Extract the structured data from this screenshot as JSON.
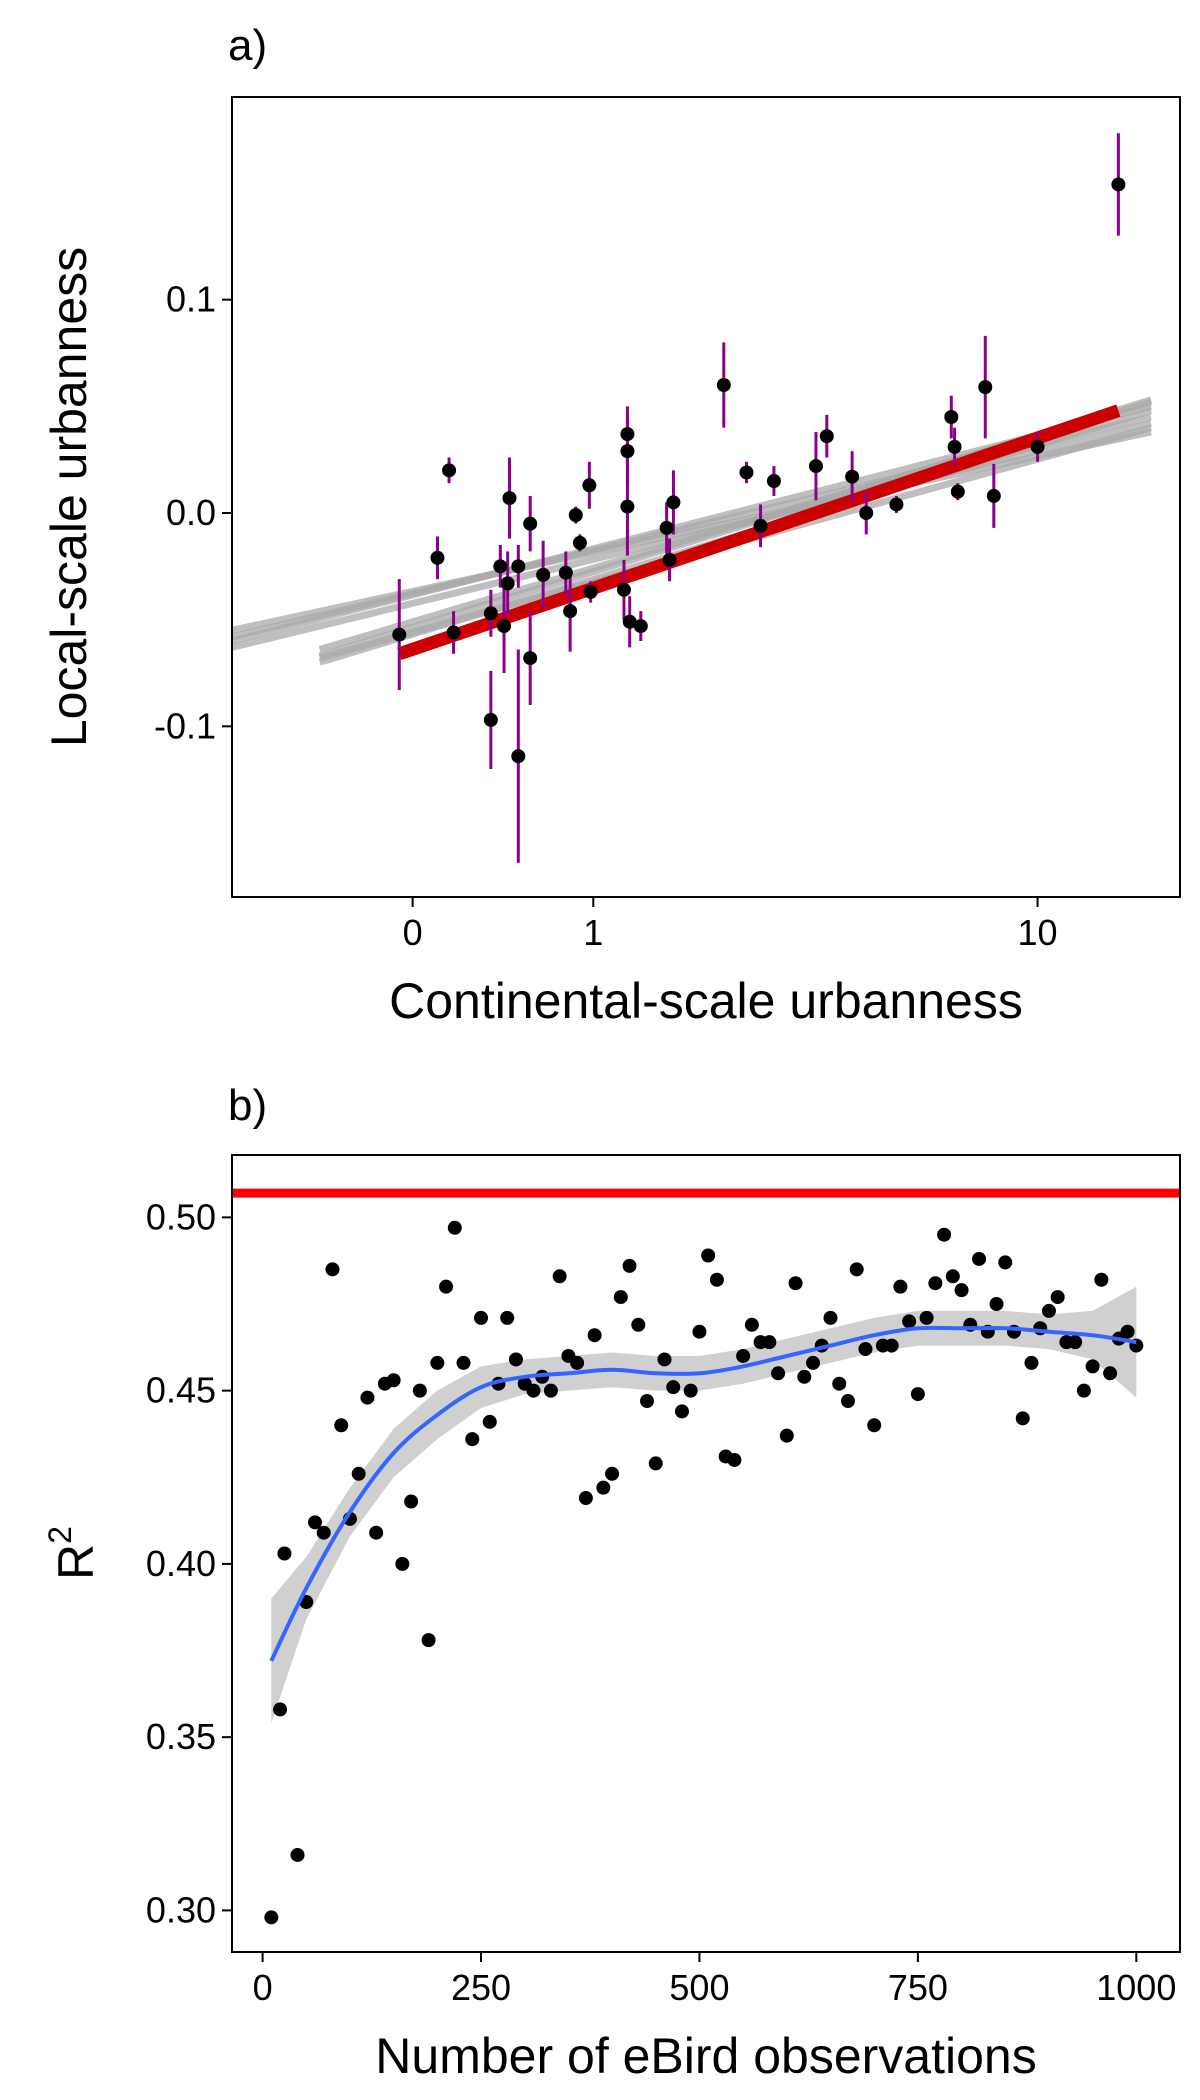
{
  "chart_data": [
    {
      "type": "scatter",
      "panel_label": "a)",
      "xlabel": "Continental-scale urbanness",
      "ylabel": "Local-scale urbanness",
      "x_scale": "log1p",
      "x_ticks": [
        {
          "value": 0,
          "label": "0"
        },
        {
          "value": 1,
          "label": "1"
        },
        {
          "value": 10,
          "label": "10"
        }
      ],
      "y_ticks": [
        {
          "value": -0.1,
          "label": "-0.1"
        },
        {
          "value": 0.0,
          "label": "0.0"
        },
        {
          "value": 0.1,
          "label": "0.1"
        }
      ],
      "xlim": [
        -0.5,
        18
      ],
      "ylim": [
        -0.18,
        0.195
      ],
      "grid": false,
      "colors": {
        "points": "#000000",
        "error_bars": "#8B008B",
        "fit_line": "#CC0000",
        "posterior_lines": "#A9A9A9"
      },
      "points": [
        {
          "x": -0.05,
          "y": -0.057,
          "lo": -0.083,
          "hi": -0.031
        },
        {
          "x": 0.1,
          "y": -0.021,
          "lo": -0.031,
          "hi": -0.011
        },
        {
          "x": 0.15,
          "y": 0.02,
          "lo": 0.014,
          "hi": 0.026
        },
        {
          "x": 0.17,
          "y": -0.056,
          "lo": -0.066,
          "hi": -0.046
        },
        {
          "x": 0.35,
          "y": -0.047,
          "lo": -0.058,
          "hi": -0.036
        },
        {
          "x": 0.35,
          "y": -0.097,
          "lo": -0.12,
          "hi": -0.074
        },
        {
          "x": 0.4,
          "y": -0.025,
          "lo": -0.035,
          "hi": -0.015
        },
        {
          "x": 0.42,
          "y": -0.053,
          "lo": -0.075,
          "hi": -0.031
        },
        {
          "x": 0.44,
          "y": -0.033,
          "lo": -0.048,
          "hi": -0.018
        },
        {
          "x": 0.45,
          "y": 0.007,
          "lo": -0.012,
          "hi": 0.026
        },
        {
          "x": 0.5,
          "y": -0.114,
          "lo": -0.164,
          "hi": -0.064
        },
        {
          "x": 0.5,
          "y": -0.025,
          "lo": -0.035,
          "hi": -0.015
        },
        {
          "x": 0.57,
          "y": -0.005,
          "lo": -0.018,
          "hi": 0.008
        },
        {
          "x": 0.57,
          "y": -0.068,
          "lo": -0.09,
          "hi": -0.046
        },
        {
          "x": 0.65,
          "y": -0.029,
          "lo": -0.045,
          "hi": -0.013
        },
        {
          "x": 0.8,
          "y": -0.028,
          "lo": -0.038,
          "hi": -0.018
        },
        {
          "x": 0.83,
          "y": -0.046,
          "lo": -0.065,
          "hi": -0.027
        },
        {
          "x": 0.87,
          "y": -0.001,
          "lo": -0.005,
          "hi": 0.003
        },
        {
          "x": 0.9,
          "y": -0.014,
          "lo": -0.018,
          "hi": -0.01
        },
        {
          "x": 0.97,
          "y": 0.013,
          "lo": 0.002,
          "hi": 0.024
        },
        {
          "x": 0.98,
          "y": -0.037,
          "lo": -0.042,
          "hi": -0.032
        },
        {
          "x": 1.25,
          "y": -0.036,
          "lo": -0.05,
          "hi": -0.022
        },
        {
          "x": 1.28,
          "y": 0.037,
          "lo": 0.024,
          "hi": 0.05
        },
        {
          "x": 1.28,
          "y": 0.029,
          "lo": 0.013,
          "hi": 0.045
        },
        {
          "x": 1.28,
          "y": 0.003,
          "lo": -0.02,
          "hi": 0.026
        },
        {
          "x": 1.3,
          "y": -0.051,
          "lo": -0.063,
          "hi": -0.039
        },
        {
          "x": 1.4,
          "y": -0.053,
          "lo": -0.06,
          "hi": -0.046
        },
        {
          "x": 1.65,
          "y": -0.007,
          "lo": -0.019,
          "hi": 0.005
        },
        {
          "x": 1.68,
          "y": -0.022,
          "lo": -0.032,
          "hi": -0.012
        },
        {
          "x": 1.72,
          "y": 0.005,
          "lo": -0.01,
          "hi": 0.02
        },
        {
          "x": 2.3,
          "y": 0.06,
          "lo": 0.04,
          "hi": 0.08
        },
        {
          "x": 2.6,
          "y": 0.019,
          "lo": 0.014,
          "hi": 0.024
        },
        {
          "x": 2.8,
          "y": -0.006,
          "lo": -0.016,
          "hi": 0.004
        },
        {
          "x": 3.0,
          "y": 0.015,
          "lo": 0.008,
          "hi": 0.022
        },
        {
          "x": 3.7,
          "y": 0.022,
          "lo": 0.006,
          "hi": 0.038
        },
        {
          "x": 3.9,
          "y": 0.036,
          "lo": 0.026,
          "hi": 0.046
        },
        {
          "x": 4.4,
          "y": 0.017,
          "lo": 0.005,
          "hi": 0.029
        },
        {
          "x": 4.7,
          "y": 0.0,
          "lo": -0.01,
          "hi": 0.01
        },
        {
          "x": 5.4,
          "y": 0.004,
          "lo": 0.0,
          "hi": 0.008
        },
        {
          "x": 6.9,
          "y": 0.045,
          "lo": 0.035,
          "hi": 0.055
        },
        {
          "x": 7.0,
          "y": 0.031,
          "lo": 0.022,
          "hi": 0.04
        },
        {
          "x": 7.1,
          "y": 0.01,
          "lo": 0.006,
          "hi": 0.014
        },
        {
          "x": 8.0,
          "y": 0.059,
          "lo": 0.035,
          "hi": 0.083
        },
        {
          "x": 8.3,
          "y": 0.008,
          "lo": -0.007,
          "hi": 0.023
        },
        {
          "x": 10.0,
          "y": 0.031,
          "lo": 0.024,
          "hi": 0.038
        },
        {
          "x": 14.0,
          "y": 0.154,
          "lo": 0.13,
          "hi": 0.178
        }
      ],
      "fit_line": {
        "x": [
          -0.05,
          14.0
        ],
        "y": [
          -0.066,
          0.048
        ]
      },
      "posterior_lines": [
        {
          "x": [
            -0.5,
            16.0
          ],
          "y": [
            -0.055,
            0.038
          ]
        },
        {
          "x": [
            -0.5,
            16.0
          ],
          "y": [
            -0.058,
            0.045
          ]
        },
        {
          "x": [
            -0.5,
            16.0
          ],
          "y": [
            -0.06,
            0.05
          ]
        },
        {
          "x": [
            -0.5,
            16.0
          ],
          "y": [
            -0.063,
            0.042
          ]
        },
        {
          "x": [
            -0.3,
            16.0
          ],
          "y": [
            -0.067,
            0.053
          ]
        },
        {
          "x": [
            -0.3,
            16.0
          ],
          "y": [
            -0.07,
            0.048
          ]
        },
        {
          "x": [
            -0.3,
            16.0
          ],
          "y": [
            -0.068,
            0.04
          ]
        },
        {
          "x": [
            -0.3,
            16.0
          ],
          "y": [
            -0.064,
            0.052
          ]
        }
      ]
    },
    {
      "type": "scatter",
      "panel_label": "b)",
      "xlabel": "Number of eBird observations",
      "ylabel": "R",
      "ylabel_superscript": "2",
      "x_ticks": [
        {
          "value": 0,
          "label": "0"
        },
        {
          "value": 250,
          "label": "250"
        },
        {
          "value": 500,
          "label": "500"
        },
        {
          "value": 750,
          "label": "750"
        },
        {
          "value": 1000,
          "label": "1000"
        }
      ],
      "y_ticks": [
        {
          "value": 0.3,
          "label": "0.30"
        },
        {
          "value": 0.35,
          "label": "0.35"
        },
        {
          "value": 0.4,
          "label": "0.40"
        },
        {
          "value": 0.45,
          "label": "0.45"
        },
        {
          "value": 0.5,
          "label": "0.50"
        }
      ],
      "xlim": [
        -35,
        1050
      ],
      "ylim": [
        0.288,
        0.518
      ],
      "grid": false,
      "colors": {
        "points": "#000000",
        "smooth": "#3366FF",
        "band": "#C8C8C8",
        "hline": "#FF0000"
      },
      "hline": 0.507,
      "points": [
        {
          "x": 10,
          "y": 0.298
        },
        {
          "x": 20,
          "y": 0.358
        },
        {
          "x": 25,
          "y": 0.403
        },
        {
          "x": 40,
          "y": 0.316
        },
        {
          "x": 50,
          "y": 0.389
        },
        {
          "x": 60,
          "y": 0.412
        },
        {
          "x": 70,
          "y": 0.409
        },
        {
          "x": 80,
          "y": 0.485
        },
        {
          "x": 90,
          "y": 0.44
        },
        {
          "x": 100,
          "y": 0.413
        },
        {
          "x": 110,
          "y": 0.426
        },
        {
          "x": 120,
          "y": 0.448
        },
        {
          "x": 130,
          "y": 0.409
        },
        {
          "x": 140,
          "y": 0.452
        },
        {
          "x": 150,
          "y": 0.453
        },
        {
          "x": 160,
          "y": 0.4
        },
        {
          "x": 170,
          "y": 0.418
        },
        {
          "x": 180,
          "y": 0.45
        },
        {
          "x": 190,
          "y": 0.378
        },
        {
          "x": 200,
          "y": 0.458
        },
        {
          "x": 210,
          "y": 0.48
        },
        {
          "x": 220,
          "y": 0.497
        },
        {
          "x": 230,
          "y": 0.458
        },
        {
          "x": 240,
          "y": 0.436
        },
        {
          "x": 250,
          "y": 0.471
        },
        {
          "x": 260,
          "y": 0.441
        },
        {
          "x": 270,
          "y": 0.452
        },
        {
          "x": 280,
          "y": 0.471
        },
        {
          "x": 290,
          "y": 0.459
        },
        {
          "x": 300,
          "y": 0.452
        },
        {
          "x": 310,
          "y": 0.45
        },
        {
          "x": 320,
          "y": 0.454
        },
        {
          "x": 330,
          "y": 0.45
        },
        {
          "x": 340,
          "y": 0.483
        },
        {
          "x": 350,
          "y": 0.46
        },
        {
          "x": 360,
          "y": 0.458
        },
        {
          "x": 370,
          "y": 0.419
        },
        {
          "x": 380,
          "y": 0.466
        },
        {
          "x": 390,
          "y": 0.422
        },
        {
          "x": 400,
          "y": 0.426
        },
        {
          "x": 410,
          "y": 0.477
        },
        {
          "x": 420,
          "y": 0.486
        },
        {
          "x": 430,
          "y": 0.469
        },
        {
          "x": 440,
          "y": 0.447
        },
        {
          "x": 450,
          "y": 0.429
        },
        {
          "x": 460,
          "y": 0.459
        },
        {
          "x": 470,
          "y": 0.451
        },
        {
          "x": 480,
          "y": 0.444
        },
        {
          "x": 490,
          "y": 0.45
        },
        {
          "x": 500,
          "y": 0.467
        },
        {
          "x": 510,
          "y": 0.489
        },
        {
          "x": 520,
          "y": 0.482
        },
        {
          "x": 530,
          "y": 0.431
        },
        {
          "x": 540,
          "y": 0.43
        },
        {
          "x": 550,
          "y": 0.46
        },
        {
          "x": 560,
          "y": 0.469
        },
        {
          "x": 570,
          "y": 0.464
        },
        {
          "x": 580,
          "y": 0.464
        },
        {
          "x": 590,
          "y": 0.455
        },
        {
          "x": 600,
          "y": 0.437
        },
        {
          "x": 610,
          "y": 0.481
        },
        {
          "x": 620,
          "y": 0.454
        },
        {
          "x": 630,
          "y": 0.458
        },
        {
          "x": 640,
          "y": 0.463
        },
        {
          "x": 650,
          "y": 0.471
        },
        {
          "x": 660,
          "y": 0.452
        },
        {
          "x": 670,
          "y": 0.447
        },
        {
          "x": 680,
          "y": 0.485
        },
        {
          "x": 690,
          "y": 0.462
        },
        {
          "x": 700,
          "y": 0.44
        },
        {
          "x": 710,
          "y": 0.463
        },
        {
          "x": 720,
          "y": 0.463
        },
        {
          "x": 730,
          "y": 0.48
        },
        {
          "x": 740,
          "y": 0.47
        },
        {
          "x": 750,
          "y": 0.449
        },
        {
          "x": 760,
          "y": 0.471
        },
        {
          "x": 770,
          "y": 0.481
        },
        {
          "x": 780,
          "y": 0.495
        },
        {
          "x": 790,
          "y": 0.483
        },
        {
          "x": 800,
          "y": 0.479
        },
        {
          "x": 810,
          "y": 0.469
        },
        {
          "x": 820,
          "y": 0.488
        },
        {
          "x": 830,
          "y": 0.467
        },
        {
          "x": 840,
          "y": 0.475
        },
        {
          "x": 850,
          "y": 0.487
        },
        {
          "x": 860,
          "y": 0.467
        },
        {
          "x": 870,
          "y": 0.442
        },
        {
          "x": 880,
          "y": 0.458
        },
        {
          "x": 890,
          "y": 0.468
        },
        {
          "x": 900,
          "y": 0.473
        },
        {
          "x": 910,
          "y": 0.477
        },
        {
          "x": 920,
          "y": 0.464
        },
        {
          "x": 930,
          "y": 0.464
        },
        {
          "x": 940,
          "y": 0.45
        },
        {
          "x": 950,
          "y": 0.457
        },
        {
          "x": 960,
          "y": 0.482
        },
        {
          "x": 970,
          "y": 0.455
        },
        {
          "x": 980,
          "y": 0.465
        },
        {
          "x": 990,
          "y": 0.467
        },
        {
          "x": 1000,
          "y": 0.463
        }
      ],
      "smooth": {
        "x": [
          10,
          50,
          100,
          150,
          200,
          250,
          300,
          350,
          400,
          450,
          500,
          550,
          600,
          650,
          700,
          750,
          800,
          850,
          900,
          950,
          1000
        ],
        "y": [
          0.372,
          0.393,
          0.415,
          0.432,
          0.443,
          0.451,
          0.454,
          0.455,
          0.456,
          0.455,
          0.455,
          0.457,
          0.46,
          0.463,
          0.466,
          0.468,
          0.468,
          0.468,
          0.467,
          0.466,
          0.464
        ],
        "lo": [
          0.354,
          0.384,
          0.408,
          0.425,
          0.436,
          0.445,
          0.449,
          0.45,
          0.451,
          0.45,
          0.45,
          0.452,
          0.455,
          0.458,
          0.461,
          0.463,
          0.463,
          0.463,
          0.462,
          0.459,
          0.448
        ],
        "hi": [
          0.39,
          0.402,
          0.422,
          0.439,
          0.45,
          0.457,
          0.459,
          0.46,
          0.461,
          0.46,
          0.46,
          0.462,
          0.465,
          0.468,
          0.471,
          0.473,
          0.473,
          0.473,
          0.472,
          0.473,
          0.48
        ]
      }
    }
  ]
}
